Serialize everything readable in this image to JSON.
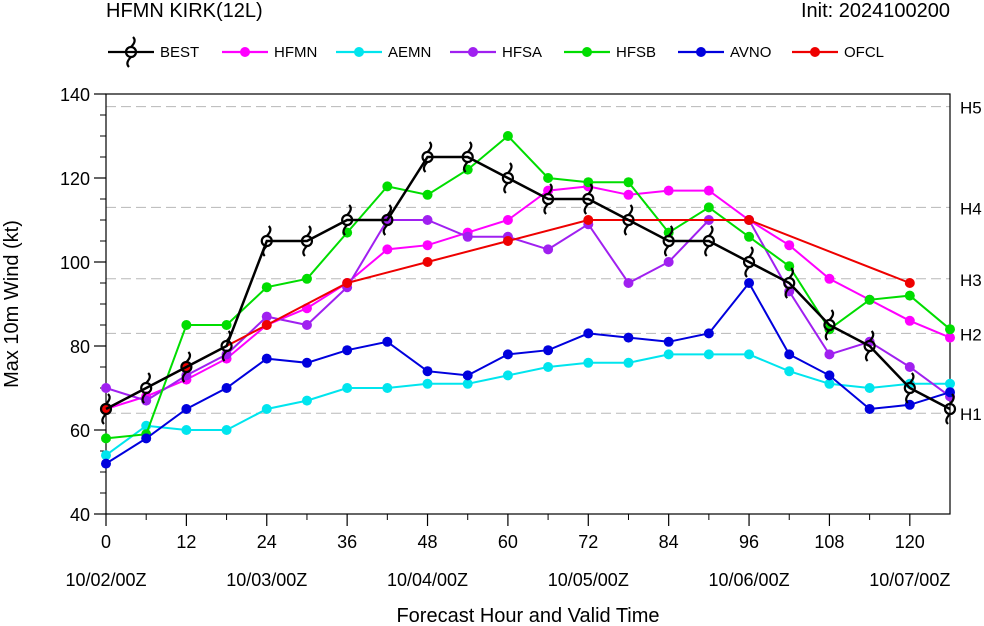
{
  "chart_data": {
    "type": "line",
    "title": "HFMN KIRK(12L)",
    "init_label": "Init: 2024100200",
    "xlabel": "Forecast Hour and Valid Time",
    "ylabel": "Max 10m Wind (kt)",
    "xlim": [
      0,
      126
    ],
    "ylim": [
      40,
      140
    ],
    "x_ticks": [
      "0",
      "12",
      "24",
      "36",
      "48",
      "60",
      "72",
      "84",
      "96",
      "108",
      "120"
    ],
    "x_tick_values": [
      0,
      12,
      24,
      36,
      48,
      60,
      72,
      84,
      96,
      108,
      120
    ],
    "date_labels": [
      {
        "x": 0,
        "label": "10/02/00Z"
      },
      {
        "x": 24,
        "label": "10/03/00Z"
      },
      {
        "x": 48,
        "label": "10/04/00Z"
      },
      {
        "x": 72,
        "label": "10/05/00Z"
      },
      {
        "x": 96,
        "label": "10/06/00Z"
      },
      {
        "x": 120,
        "label": "10/07/00Z"
      }
    ],
    "y_ticks": [
      "40",
      "60",
      "80",
      "100",
      "120",
      "140"
    ],
    "y_tick_values": [
      40,
      60,
      80,
      100,
      120,
      140
    ],
    "category_lines": [
      {
        "label": "H1",
        "value": 64
      },
      {
        "label": "H2",
        "value": 83
      },
      {
        "label": "H3",
        "value": 96
      },
      {
        "label": "H4",
        "value": 113
      },
      {
        "label": "H5",
        "value": 137
      }
    ],
    "legend_position": "top",
    "series": [
      {
        "name": "BEST",
        "color": "#000000",
        "marker": "hurricane",
        "x": [
          0,
          6,
          12,
          18,
          24,
          30,
          36,
          42,
          48,
          54,
          60,
          66,
          72,
          78,
          84,
          90,
          96,
          102,
          108,
          114,
          120,
          126
        ],
        "y": [
          65,
          70,
          75,
          80,
          105,
          105,
          110,
          110,
          125,
          125,
          120,
          115,
          115,
          110,
          105,
          105,
          100,
          95,
          85,
          80,
          70,
          65
        ]
      },
      {
        "name": "HFMN",
        "color": "#ff00ff",
        "marker": "circle",
        "x": [
          0,
          6,
          12,
          18,
          24,
          30,
          36,
          42,
          48,
          54,
          60,
          66,
          72,
          78,
          84,
          90,
          96,
          102,
          108,
          114,
          120,
          126
        ],
        "y": [
          65,
          68,
          72,
          77,
          85,
          89,
          95,
          103,
          104,
          107,
          110,
          117,
          118,
          116,
          117,
          117,
          110,
          104,
          96,
          91,
          86,
          82
        ]
      },
      {
        "name": "AEMN",
        "color": "#00e5ee",
        "marker": "circle",
        "x": [
          0,
          6,
          12,
          18,
          24,
          30,
          36,
          42,
          48,
          54,
          60,
          66,
          72,
          78,
          84,
          90,
          96,
          102,
          108,
          114,
          120,
          126
        ],
        "y": [
          54,
          61,
          60,
          60,
          65,
          67,
          70,
          70,
          71,
          71,
          73,
          75,
          76,
          76,
          78,
          78,
          78,
          74,
          71,
          70,
          71,
          71
        ]
      },
      {
        "name": "HFSA",
        "color": "#a020f0",
        "marker": "circle",
        "x": [
          0,
          6,
          12,
          18,
          24,
          30,
          36,
          42,
          48,
          54,
          60,
          66,
          72,
          78,
          84,
          90,
          96,
          102,
          108,
          114,
          120,
          126
        ],
        "y": [
          70,
          67,
          73,
          78,
          87,
          85,
          94,
          110,
          110,
          106,
          106,
          103,
          109,
          95,
          100,
          110,
          110,
          93,
          78,
          81,
          75,
          68
        ]
      },
      {
        "name": "HFSB",
        "color": "#00dd00",
        "marker": "circle",
        "x": [
          0,
          6,
          12,
          18,
          24,
          30,
          36,
          42,
          48,
          54,
          60,
          66,
          72,
          78,
          84,
          90,
          96,
          102,
          108,
          114,
          120,
          126
        ],
        "y": [
          58,
          59,
          85,
          85,
          94,
          96,
          107,
          118,
          116,
          122,
          130,
          120,
          119,
          119,
          107,
          113,
          106,
          99,
          84,
          91,
          92,
          84
        ]
      },
      {
        "name": "AVNO",
        "color": "#0000dd",
        "marker": "circle",
        "x": [
          0,
          6,
          12,
          18,
          24,
          30,
          36,
          42,
          48,
          54,
          60,
          66,
          72,
          78,
          84,
          90,
          96,
          102,
          108,
          114,
          120,
          126
        ],
        "y": [
          52,
          58,
          65,
          70,
          77,
          76,
          79,
          81,
          74,
          73,
          78,
          79,
          83,
          82,
          81,
          83,
          95,
          78,
          73,
          65,
          66,
          69
        ]
      },
      {
        "name": "OFCL",
        "color": "#ee0000",
        "marker": "circle",
        "x": [
          0,
          12,
          24,
          36,
          48,
          60,
          72,
          96,
          120
        ],
        "y": [
          65,
          75,
          85,
          95,
          100,
          105,
          110,
          110,
          95
        ]
      }
    ]
  }
}
